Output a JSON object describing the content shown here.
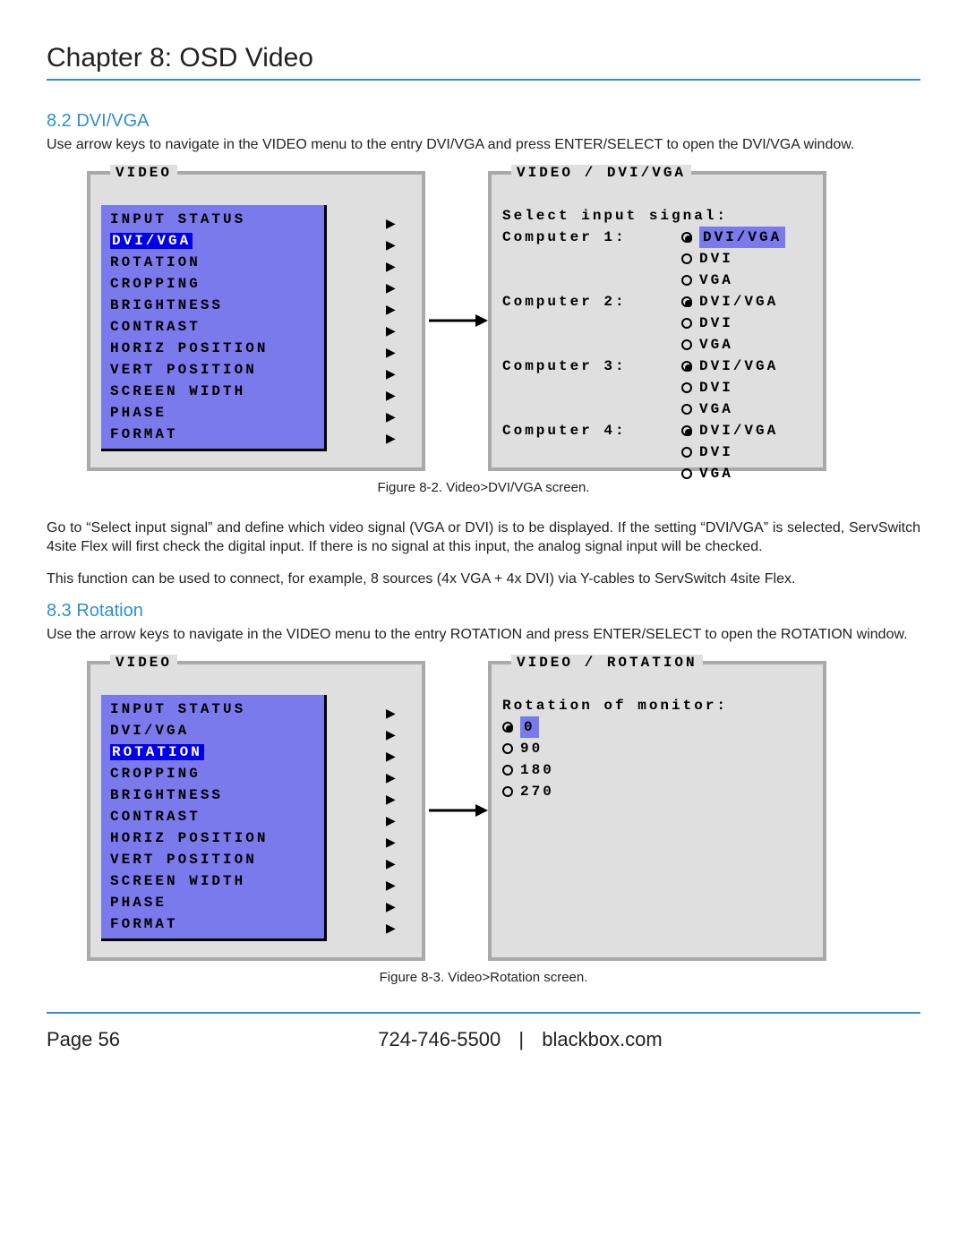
{
  "chapter_title": "Chapter 8: OSD Video",
  "colors": {
    "accent": "#2f8fd0",
    "osd_border": "#a9a9aa",
    "osd_bg": "#dedfde",
    "menu_bg": "#7a7aed",
    "selected_bg": "#0000ed",
    "selected_fg": "#ffffff",
    "text": "#000000"
  },
  "section_82": {
    "heading": "8.2 DVI/VGA",
    "intro": "Use arrow keys to navigate in the VIDEO menu to the entry DVI/VGA and press ENTER/SELECT to open the DVI/VGA window.",
    "menu_title": "VIDEO",
    "menu_items": [
      {
        "label": "INPUT STATUS",
        "selected": false
      },
      {
        "label": "DVI/VGA",
        "selected": true
      },
      {
        "label": "ROTATION",
        "selected": false
      },
      {
        "label": "CROPPING",
        "selected": false
      },
      {
        "label": "BRIGHTNESS",
        "selected": false
      },
      {
        "label": "CONTRAST",
        "selected": false
      },
      {
        "label": "HORIZ POSITION",
        "selected": false
      },
      {
        "label": "VERT POSITION",
        "selected": false
      },
      {
        "label": "SCREEN WIDTH",
        "selected": false
      },
      {
        "label": "PHASE",
        "selected": false
      },
      {
        "label": "FORMAT",
        "selected": false
      }
    ],
    "right_title": "VIDEO / DVI/VGA",
    "right_heading": "Select input signal:",
    "computers": [
      {
        "name": "Computer 1:",
        "options": [
          {
            "label": "DVI/VGA",
            "checked": true,
            "highlight": true
          },
          {
            "label": "DVI",
            "checked": false,
            "highlight": false
          },
          {
            "label": "VGA",
            "checked": false,
            "highlight": false
          }
        ]
      },
      {
        "name": "Computer 2:",
        "options": [
          {
            "label": "DVI/VGA",
            "checked": true,
            "highlight": false
          },
          {
            "label": "DVI",
            "checked": false,
            "highlight": false
          },
          {
            "label": "VGA",
            "checked": false,
            "highlight": false
          }
        ]
      },
      {
        "name": "Computer 3:",
        "options": [
          {
            "label": "DVI/VGA",
            "checked": true,
            "highlight": false
          },
          {
            "label": "DVI",
            "checked": false,
            "highlight": false
          },
          {
            "label": "VGA",
            "checked": false,
            "highlight": false
          }
        ]
      },
      {
        "name": "Computer 4:",
        "options": [
          {
            "label": "DVI/VGA",
            "checked": true,
            "highlight": false
          },
          {
            "label": "DVI",
            "checked": false,
            "highlight": false
          },
          {
            "label": "VGA",
            "checked": false,
            "highlight": false
          }
        ]
      }
    ],
    "caption": "Figure 8-2. Video>DVI/VGA screen.",
    "para2": "Go to “Select input signal” and define which video signal (VGA or DVI) is to be displayed. If the setting “DVI/VGA” is selected, ServSwitch 4site Flex will first check the digital input. If there is no signal at this input, the analog signal input will be checked.",
    "para3": "This function can be used to connect, for example, 8 sources (4x VGA + 4x DVI) via Y-cables to ServSwitch 4site Flex."
  },
  "section_83": {
    "heading": "8.3 Rotation",
    "intro": "Use the arrow keys to navigate in the VIDEO menu to the entry ROTATION and press ENTER/SELECT to open the ROTATION window.",
    "menu_title": "VIDEO",
    "menu_items": [
      {
        "label": "INPUT STATUS",
        "selected": false
      },
      {
        "label": "DVI/VGA",
        "selected": false
      },
      {
        "label": "ROTATION",
        "selected": true
      },
      {
        "label": "CROPPING",
        "selected": false
      },
      {
        "label": "BRIGHTNESS",
        "selected": false
      },
      {
        "label": "CONTRAST",
        "selected": false
      },
      {
        "label": "HORIZ POSITION",
        "selected": false
      },
      {
        "label": "VERT POSITION",
        "selected": false
      },
      {
        "label": "SCREEN WIDTH",
        "selected": false
      },
      {
        "label": "PHASE",
        "selected": false
      },
      {
        "label": "FORMAT",
        "selected": false
      }
    ],
    "right_title": "VIDEO / ROTATION",
    "right_heading": "Rotation of monitor:",
    "rotation_options": [
      {
        "label": "0",
        "checked": true,
        "highlight": true
      },
      {
        "label": "90",
        "checked": false,
        "highlight": false
      },
      {
        "label": "180",
        "checked": false,
        "highlight": false
      },
      {
        "label": "270",
        "checked": false,
        "highlight": false
      }
    ],
    "caption": "Figure 8-3. Video>Rotation screen."
  },
  "footer": {
    "page_label": "Page 56",
    "phone": "724-746-5500",
    "site": "blackbox.com",
    "separator": "|"
  }
}
